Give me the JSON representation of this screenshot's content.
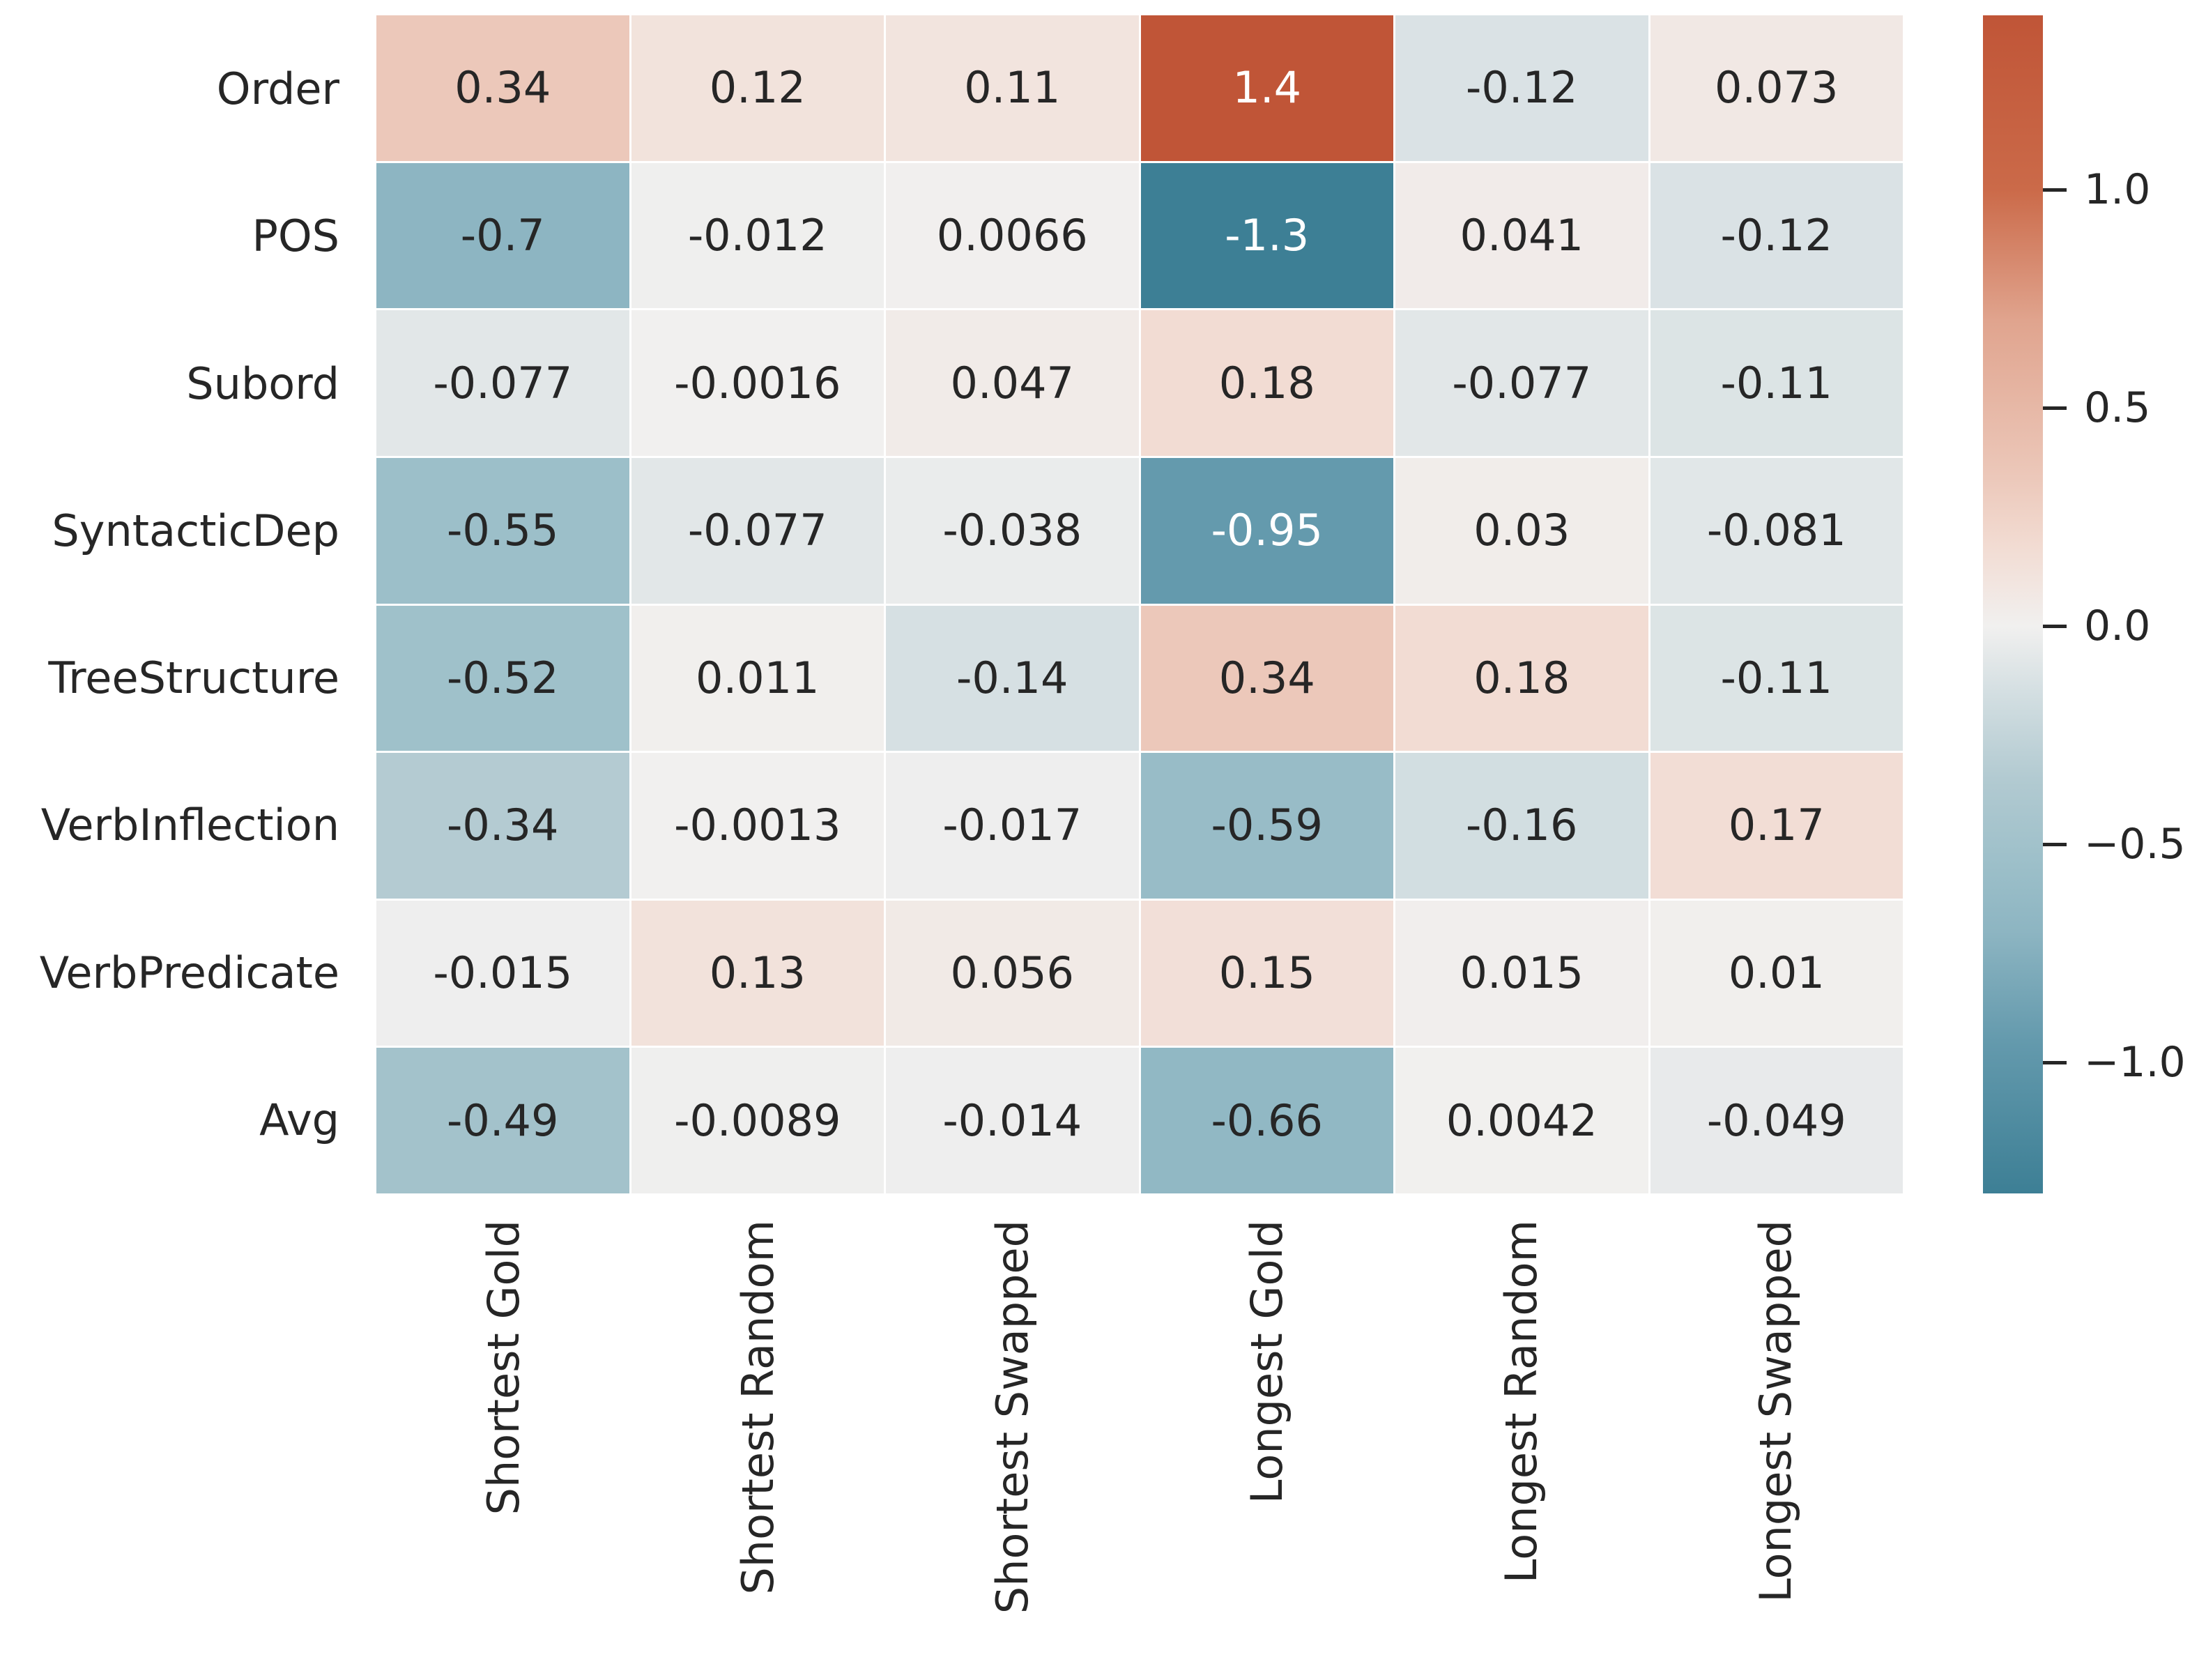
{
  "chart_data": {
    "type": "heatmap",
    "title": "",
    "rows": [
      "Order",
      "POS",
      "Subord",
      "SyntacticDep",
      "TreeStructure",
      "VerbInflection",
      "VerbPredicate",
      "Avg"
    ],
    "columns": [
      "Shortest Gold",
      "Shortest Random",
      "Shortest Swapped",
      "Longest Gold",
      "Longest Random",
      "Longest Swapped"
    ],
    "values": [
      [
        "0.34",
        "0.12",
        "0.11",
        "1.4",
        "-0.12",
        "0.073"
      ],
      [
        "-0.7",
        "-0.012",
        "0.0066",
        "-1.3",
        "0.041",
        "-0.12"
      ],
      [
        "-0.077",
        "-0.0016",
        "0.047",
        "0.18",
        "-0.077",
        "-0.11"
      ],
      [
        "-0.55",
        "-0.077",
        "-0.038",
        "-0.95",
        "0.03",
        "-0.081"
      ],
      [
        "-0.52",
        "0.011",
        "-0.14",
        "0.34",
        "0.18",
        "-0.11"
      ],
      [
        "-0.34",
        "-0.0013",
        "-0.017",
        "-0.59",
        "-0.16",
        "0.17"
      ],
      [
        "-0.015",
        "0.13",
        "0.056",
        "0.15",
        "0.015",
        "0.01"
      ],
      [
        "-0.49",
        "-0.0089",
        "-0.014",
        "-0.66",
        "0.0042",
        "-0.049"
      ]
    ],
    "colorbar": {
      "vmin": -1.3,
      "vmax": 1.4,
      "tick_labels": [
        "1.0",
        "0.5",
        "0.0",
        "−0.5",
        "−1.0"
      ],
      "tick_values": [
        1.0,
        0.5,
        0.0,
        -0.5,
        -1.0
      ],
      "position": "right"
    },
    "colormap_stops": [
      [
        -1.3,
        "#3d7f95"
      ],
      [
        -0.95,
        "#649aad"
      ],
      [
        -0.7,
        "#8db5c2"
      ],
      [
        -0.55,
        "#9cbfc9"
      ],
      [
        -0.35,
        "#b2cad1"
      ],
      [
        -0.15,
        "#d4dfe2"
      ],
      [
        0.0,
        "#f1f0ef"
      ],
      [
        0.18,
        "#f2dcd3"
      ],
      [
        0.34,
        "#ecc8ba"
      ],
      [
        0.7,
        "#e0a48e"
      ],
      [
        1.0,
        "#cb6a49"
      ],
      [
        1.4,
        "#c05537"
      ]
    ],
    "annotation_text_dark": "#262626",
    "annotation_text_light": "#ffffff",
    "grid": false,
    "legend": false
  }
}
